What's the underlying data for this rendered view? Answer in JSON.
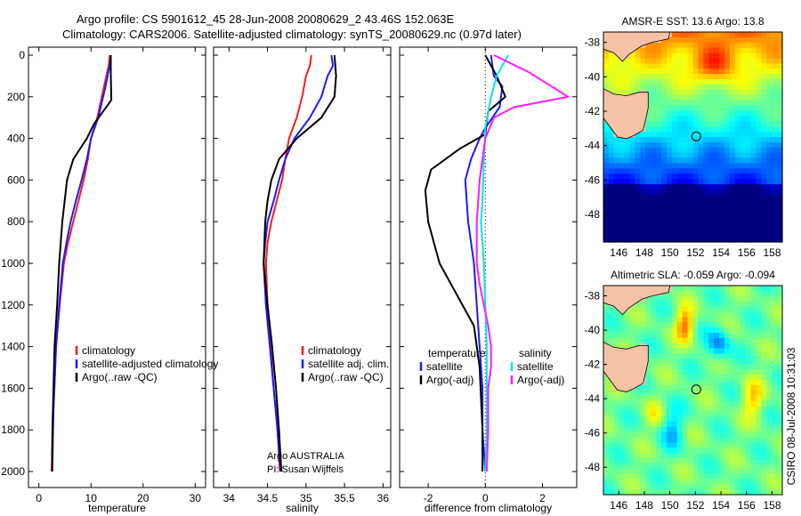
{
  "header": {
    "line1": "Argo profile: CS 5901612_45 28-Jun-2008 20080629_2 43.46S 152.063E",
    "line2": "Climatology: CARS2006. Satellite-adjusted climatology: synTS_20080629.nc (0.97d later)"
  },
  "side_stamp": "CSIRO 08-Jul-2008 10:31:03",
  "colors": {
    "argo": "#000000",
    "climatology": "#ff1a1a",
    "satellite": "#1a1aff",
    "sal_satellite": "#00e5ee",
    "sal_argo": "#ff1aff",
    "land": "#f5c2a5"
  },
  "chart_data": [
    {
      "id": "temperature",
      "type": "line",
      "xlabel": "temperature",
      "ylabel": "",
      "xlim": [
        -2,
        32
      ],
      "ylim": [
        2050,
        0
      ],
      "xticks": [
        0,
        10,
        20,
        30
      ],
      "yticks": [
        0,
        200,
        400,
        600,
        800,
        1000,
        1200,
        1400,
        1600,
        1800,
        2000
      ],
      "legend": [
        "climatology",
        "satellite-adjusted climatology",
        "Argo(..raw -QC)"
      ],
      "series": [
        {
          "name": "climatology",
          "color": "#ff1a1a",
          "x": [
            13.6,
            13.4,
            12.5,
            11.2,
            10.0,
            9.4,
            8.6,
            7.6,
            6.6,
            5.6,
            4.8,
            4.0,
            3.3,
            2.8,
            2.6
          ],
          "y": [
            0,
            50,
            150,
            300,
            400,
            500,
            600,
            700,
            800,
            900,
            1000,
            1200,
            1400,
            1700,
            2000
          ]
        },
        {
          "name": "satellite-adjusted climatology",
          "color": "#1a1aff",
          "x": [
            13.8,
            13.6,
            12.8,
            11.4,
            10.0,
            9.2,
            8.2,
            7.1,
            6.1,
            5.3,
            4.6,
            3.9,
            3.3,
            2.8,
            2.5
          ],
          "y": [
            0,
            50,
            150,
            300,
            400,
            500,
            600,
            700,
            800,
            900,
            1000,
            1200,
            1400,
            1700,
            2000
          ]
        },
        {
          "name": "Argo(..raw -QC)",
          "color": "#000000",
          "x": [
            13.8,
            13.8,
            13.9,
            13.5,
            10.6,
            9.2,
            6.6,
            5.4,
            4.5,
            3.9,
            3.5,
            3.0,
            2.8,
            2.6,
            2.5
          ],
          "y": [
            0,
            100,
            215,
            230,
            330,
            400,
            500,
            600,
            800,
            1000,
            1200,
            1400,
            1600,
            1800,
            2000
          ]
        }
      ],
      "annotations": []
    },
    {
      "id": "salinity",
      "type": "line",
      "xlabel": "salinity",
      "ylabel": "",
      "xlim": [
        33.8,
        36.1
      ],
      "ylim": [
        2050,
        0
      ],
      "xticks": [
        34,
        34.5,
        35,
        35.5,
        36
      ],
      "legend": [
        "climatology",
        "satellite adj. clim.",
        "Argo(..raw -QC)"
      ],
      "series": [
        {
          "name": "climatology",
          "color": "#ff1a1a",
          "x": [
            35.07,
            35.05,
            35.0,
            34.95,
            34.88,
            34.78,
            34.73,
            34.69,
            34.62,
            34.55,
            34.5,
            34.48,
            34.5,
            34.54,
            34.58,
            34.63,
            34.66
          ],
          "y": [
            0,
            50,
            100,
            200,
            300,
            400,
            500,
            600,
            700,
            800,
            900,
            1000,
            1200,
            1400,
            1600,
            1800,
            2000
          ]
        },
        {
          "name": "satellite adj. clim.",
          "color": "#1a1aff",
          "x": [
            35.33,
            35.35,
            35.28,
            35.2,
            35.05,
            34.85,
            34.73,
            34.65,
            34.58,
            34.5,
            34.47,
            34.45,
            34.48,
            34.53,
            34.58,
            34.63,
            34.67
          ],
          "y": [
            0,
            50,
            100,
            200,
            300,
            400,
            500,
            600,
            700,
            800,
            900,
            1000,
            1200,
            1400,
            1600,
            1800,
            2000
          ]
        },
        {
          "name": "Argo(..raw -QC)",
          "color": "#000000",
          "x": [
            35.37,
            35.38,
            35.39,
            35.37,
            35.2,
            34.88,
            34.65,
            34.55,
            34.5,
            34.47,
            34.46,
            34.45,
            34.5,
            34.56,
            34.61,
            34.65,
            34.68
          ],
          "y": [
            0,
            50,
            100,
            200,
            300,
            400,
            500,
            600,
            700,
            800,
            900,
            1000,
            1200,
            1400,
            1600,
            1800,
            2000
          ]
        }
      ],
      "annotations": [
        "Argo AUSTRALIA",
        "PI: Susan Wijffels"
      ]
    },
    {
      "id": "difference",
      "type": "line",
      "xlabel": "difference from climatology",
      "ylabel": "",
      "xlim": [
        -3.0,
        3.2
      ],
      "ylim": [
        2050,
        0
      ],
      "xticks": [
        -2,
        0,
        2
      ],
      "legend_groups": [
        {
          "title": "temperature",
          "items": [
            "satellite",
            "Argo(-adj)"
          ]
        },
        {
          "title": "salinity",
          "items": [
            "satellite",
            "Argo(-adj)"
          ]
        }
      ],
      "series": [
        {
          "name": "satellite",
          "group": "temperature",
          "color": "#1a1aff",
          "x": [
            0.2,
            0.3,
            0.6,
            0.5,
            0.0,
            -0.2,
            -0.5,
            -0.7,
            -0.6,
            -0.4,
            -0.3,
            -0.2,
            -0.1,
            -0.1,
            0.0
          ],
          "y": [
            0,
            100,
            150,
            250,
            350,
            400,
            500,
            600,
            800,
            1000,
            1200,
            1400,
            1600,
            1800,
            2000
          ]
        },
        {
          "name": "Argo(-adj)",
          "group": "temperature",
          "color": "#000000",
          "x": [
            0.0,
            0.4,
            0.7,
            0.1,
            0.0,
            -0.9,
            -1.9,
            -2.1,
            -2.0,
            -1.6,
            -1.0,
            -0.4,
            -0.2,
            -0.1,
            -0.1
          ],
          "y": [
            0,
            100,
            200,
            270,
            380,
            450,
            550,
            650,
            800,
            1000,
            1150,
            1300,
            1500,
            1800,
            2000
          ]
        },
        {
          "name": "satellite",
          "group": "salinity",
          "color": "#00e5ee",
          "x": [
            0.8,
            0.6,
            0.4,
            0.2,
            0.0,
            -0.05,
            -0.1,
            -0.15,
            -0.1,
            -0.05,
            0.0,
            0.05,
            0.05,
            0.05,
            0.0
          ],
          "y": [
            0,
            50,
            100,
            200,
            350,
            500,
            700,
            800,
            900,
            1000,
            1200,
            1400,
            1600,
            1800,
            2000
          ]
        },
        {
          "name": "Argo(-adj)",
          "group": "salinity",
          "color": "#ff1aff",
          "x": [
            0.3,
            1.5,
            2.9,
            1.0,
            0.3,
            0.0,
            -0.2,
            -0.3,
            -0.3,
            -0.2,
            0.1,
            0.2,
            0.2,
            0.1,
            0.1,
            0.05
          ],
          "y": [
            0,
            80,
            200,
            250,
            300,
            400,
            600,
            800,
            1000,
            1100,
            1300,
            1400,
            1500,
            1600,
            1800,
            2000
          ]
        }
      ],
      "annotations": []
    }
  ],
  "maps": [
    {
      "id": "sst",
      "title": "AMSR-E SST: 13.6 Argo: 13.8",
      "lon_ticks": [
        146,
        148,
        150,
        152,
        154,
        156,
        158
      ],
      "lat_ticks": [
        -38,
        -40,
        -42,
        -44,
        -46,
        -48
      ],
      "lon_range": [
        144.8,
        158.8
      ],
      "lat_range": [
        -49.6,
        -37.4
      ],
      "marker": {
        "lon": 152.063,
        "lat": -43.46
      },
      "colormap": "jet"
    },
    {
      "id": "sla",
      "title": "Altimetric SLA: -0.059 Argo: -0.094",
      "lon_ticks": [
        146,
        148,
        150,
        152,
        154,
        156,
        158
      ],
      "lat_ticks": [
        -38,
        -40,
        -42,
        -44,
        -46,
        -48
      ],
      "lon_range": [
        144.8,
        158.8
      ],
      "lat_range": [
        -49.6,
        -37.4
      ],
      "marker": {
        "lon": 152.063,
        "lat": -43.46
      },
      "colormap": "jet"
    }
  ]
}
